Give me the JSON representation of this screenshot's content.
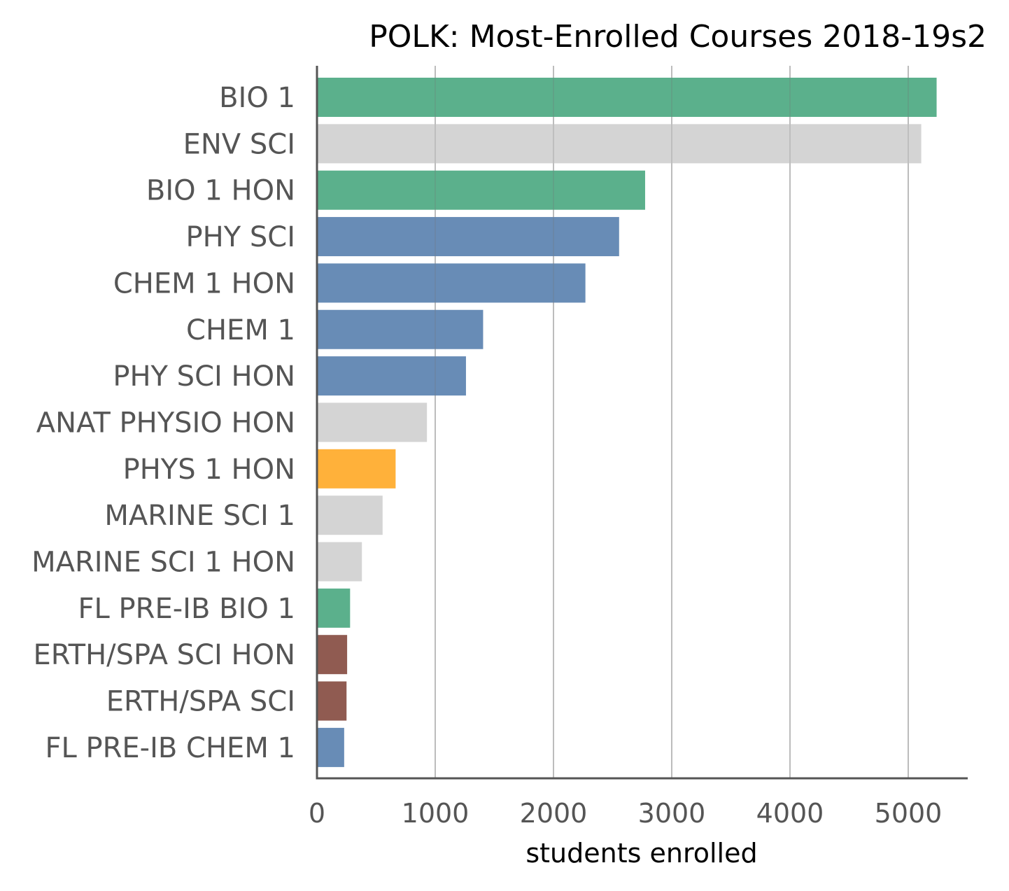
{
  "chart_data": {
    "type": "bar",
    "orientation": "horizontal",
    "title": "POLK: Most-Enrolled Courses 2018-19s2",
    "xlabel": "students enrolled",
    "ylabel": "",
    "xlim": [
      0,
      5500
    ],
    "x_ticks": [
      0,
      1000,
      2000,
      3000,
      4000,
      5000
    ],
    "grid": "vertical gridlines",
    "legend": "none",
    "categories": [
      "BIO 1",
      "ENV SCI",
      "BIO 1 HON",
      "PHY SCI",
      "CHEM 1 HON",
      "CHEM 1",
      "PHY SCI HON",
      "ANAT PHYSIO HON",
      "PHYS 1 HON",
      "MARINE SCI 1",
      "MARINE SCI 1 HON",
      "FL PRE-IB BIO 1",
      "ERTH/SPA SCI HON",
      "ERTH/SPA SCI",
      "FL PRE-IB CHEM 1"
    ],
    "values": [
      5240,
      5110,
      2775,
      2555,
      2270,
      1405,
      1260,
      930,
      665,
      555,
      380,
      280,
      255,
      250,
      230
    ],
    "bar_colors": [
      "#56ad88",
      "#d3d3d3",
      "#56ad88",
      "#6388b4",
      "#6388b4",
      "#6388b4",
      "#6388b4",
      "#d3d3d3",
      "#ffae34",
      "#d3d3d3",
      "#d3d3d3",
      "#56ad88",
      "#8c564b",
      "#8c564b",
      "#6388b4"
    ]
  },
  "colors": {
    "axis": "#555555",
    "gridline": "#7a7a7a",
    "title": "#000000",
    "labels": "#555555"
  }
}
